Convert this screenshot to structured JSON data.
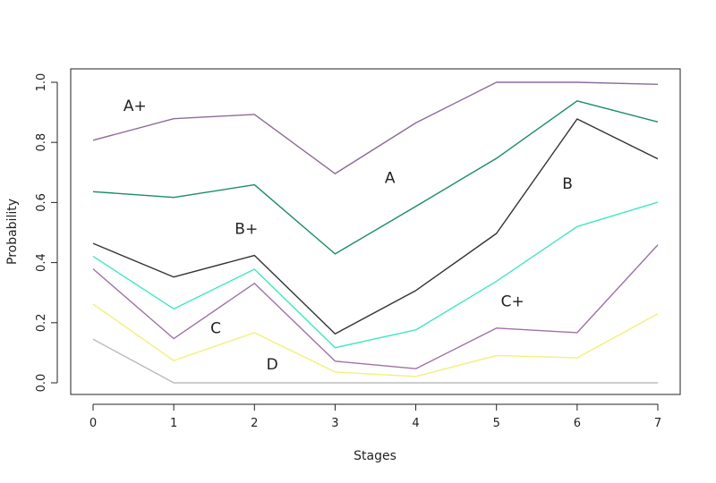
{
  "chart_data": {
    "type": "line",
    "title": "",
    "xlabel": "Stages",
    "ylabel": "Probability",
    "x": [
      0,
      1,
      2,
      3,
      4,
      5,
      6,
      7
    ],
    "xlim": [
      0,
      7
    ],
    "ylim": [
      0,
      1
    ],
    "yticks": [
      "0.0",
      "0.2",
      "0.4",
      "0.6",
      "0.8",
      "1.0"
    ],
    "xticks": [
      "0",
      "1",
      "2",
      "3",
      "4",
      "5",
      "6",
      "7"
    ],
    "grid": false,
    "series": [
      {
        "color": "#8e6a9a",
        "values": [
          0.807,
          0.879,
          0.893,
          0.696,
          0.865,
          1.0,
          1.0,
          0.993
        ]
      },
      {
        "color": "#1a8c6a",
        "values": [
          0.636,
          0.617,
          0.659,
          0.429,
          0.587,
          0.747,
          0.938,
          0.868
        ]
      },
      {
        "color": "#333333",
        "values": [
          0.464,
          0.352,
          0.424,
          0.163,
          0.307,
          0.497,
          0.878,
          0.745
        ]
      },
      {
        "color": "#3fe6c4",
        "values": [
          0.421,
          0.246,
          0.378,
          0.117,
          0.176,
          0.338,
          0.52,
          0.601
        ]
      },
      {
        "color": "#a070a8",
        "values": [
          0.379,
          0.147,
          0.331,
          0.072,
          0.047,
          0.182,
          0.167,
          0.459
        ]
      },
      {
        "color": "#f2f07a",
        "values": [
          0.262,
          0.074,
          0.167,
          0.036,
          0.021,
          0.091,
          0.083,
          0.23
        ]
      },
      {
        "color": "#bbbbbb",
        "values": [
          0.145,
          0.0,
          0.0,
          0.0,
          0.0,
          0.0,
          0.0,
          0.0
        ]
      }
    ],
    "annotations": [
      {
        "text": "A+",
        "x": 0.52,
        "y": 0.92
      },
      {
        "text": "A",
        "x": 3.68,
        "y": 0.68
      },
      {
        "text": "B+",
        "x": 1.9,
        "y": 0.51
      },
      {
        "text": "B",
        "x": 5.88,
        "y": 0.66
      },
      {
        "text": "C+",
        "x": 5.2,
        "y": 0.27
      },
      {
        "text": "C",
        "x": 1.52,
        "y": 0.18
      },
      {
        "text": "D",
        "x": 2.22,
        "y": 0.06
      }
    ]
  }
}
